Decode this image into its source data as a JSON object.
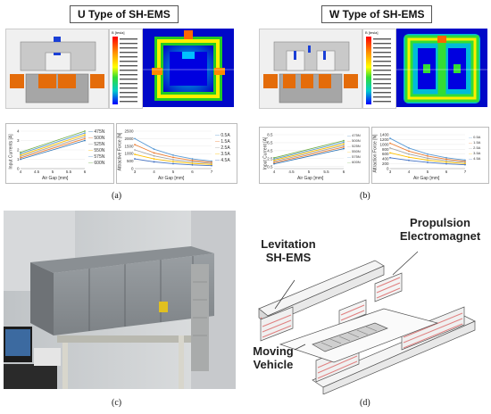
{
  "panel_a": {
    "title": "U Type of SH-EMS",
    "caption": "(a)",
    "colorbar_header": "B [tesla]",
    "left_chart": {
      "ylabel": "Input Currents [A]",
      "xlabel": "Air Gap [mm]",
      "legend": [
        "475N",
        "500N",
        "525N",
        "550N",
        "575N",
        "600N"
      ]
    },
    "right_chart": {
      "ylabel": "Attractive Force [N]",
      "xlabel": "Air Gap [mm]",
      "legend": [
        "0.5A",
        "1.5A",
        "2.5A",
        "3.5A",
        "4.5A"
      ]
    }
  },
  "panel_b": {
    "title": "W Type of SH-EMS",
    "caption": "(b)",
    "colorbar_header": "B [tesla]",
    "left_chart": {
      "ylabel": "Input Current [A]",
      "xlabel": "Air Gap [mm]",
      "legend": [
        "475N",
        "500N",
        "525N",
        "550N",
        "575N",
        "600N"
      ]
    },
    "right_chart": {
      "ylabel": "Attraction Force [N]",
      "xlabel": "Air Gap [mm]",
      "legend": [
        "0.5A",
        "1.5A",
        "2.5A",
        "3.5A",
        "4.5A"
      ]
    }
  },
  "panel_c": {
    "caption": "(c)"
  },
  "panel_d": {
    "caption": "(d)",
    "label_propulsion": "Propulsion Electromagnet",
    "label_levitation": "Levitation SH-EMS",
    "label_vehicle": "Moving Vehicle"
  },
  "chart_data": [
    {
      "type": "line",
      "xlabel": "Air Gap [mm]",
      "ylabel": "Input Currents [A]",
      "x": [
        4,
        6
      ],
      "xlim": [
        4,
        6
      ],
      "ylim": [
        0,
        4
      ],
      "xticks": [
        "4",
        "4.5",
        "5",
        "5.5",
        "6"
      ],
      "yticks": [
        "0",
        "1",
        "2",
        "3",
        "4"
      ],
      "series": [
        {
          "name": "475N",
          "color": "#2e75b6",
          "values": [
            1.0,
            3.0
          ]
        },
        {
          "name": "500N",
          "color": "#ed7d31",
          "values": [
            1.15,
            3.2
          ]
        },
        {
          "name": "525N",
          "color": "#a5a5a5",
          "values": [
            1.3,
            3.4
          ]
        },
        {
          "name": "550N",
          "color": "#ffc000",
          "values": [
            1.45,
            3.6
          ]
        },
        {
          "name": "575N",
          "color": "#5b9bd5",
          "values": [
            1.6,
            3.8
          ]
        },
        {
          "name": "600N",
          "color": "#70ad47",
          "values": [
            1.75,
            4.0
          ]
        }
      ]
    },
    {
      "type": "line",
      "xlabel": "Air Gap [mm]",
      "ylabel": "Attractive Force [N]",
      "x": [
        3,
        4,
        5,
        6,
        7
      ],
      "xlim": [
        3,
        7
      ],
      "ylim": [
        0,
        2500
      ],
      "xticks": [
        "3",
        "4",
        "5",
        "6",
        "7"
      ],
      "yticks": [
        "0",
        "500",
        "1000",
        "1500",
        "2000",
        "2500"
      ],
      "series": [
        {
          "name": "0.5A",
          "color": "#5b9bd5",
          "values": [
            2000,
            1300,
            900,
            650,
            500
          ]
        },
        {
          "name": "1.5A",
          "color": "#ed7d31",
          "values": [
            1600,
            1050,
            750,
            550,
            420
          ]
        },
        {
          "name": "2.5A",
          "color": "#a5a5a5",
          "values": [
            1250,
            850,
            600,
            450,
            350
          ]
        },
        {
          "name": "3.5A",
          "color": "#ffc000",
          "values": [
            950,
            650,
            470,
            350,
            280
          ]
        },
        {
          "name": "4.5A",
          "color": "#4472c4",
          "values": [
            650,
            450,
            330,
            250,
            200
          ]
        }
      ]
    },
    {
      "type": "line",
      "xlabel": "Air Gap [mm]",
      "ylabel": "Input Current [A]",
      "x": [
        4,
        6
      ],
      "xlim": [
        4,
        6
      ],
      "ylim": [
        0,
        8.5
      ],
      "xticks": [
        "4",
        "4.5",
        "5",
        "5.5",
        "6"
      ],
      "yticks": [
        "0.5",
        "2.5",
        "4.5",
        "6.5",
        "8.5"
      ],
      "series": [
        {
          "name": "475N",
          "color": "#2e75b6",
          "values": [
            1.2,
            5.0
          ]
        },
        {
          "name": "500N",
          "color": "#ed7d31",
          "values": [
            1.5,
            5.4
          ]
        },
        {
          "name": "525N",
          "color": "#a5a5a5",
          "values": [
            1.8,
            5.8
          ]
        },
        {
          "name": "550N",
          "color": "#ffc000",
          "values": [
            2.1,
            6.2
          ]
        },
        {
          "name": "575N",
          "color": "#5b9bd5",
          "values": [
            2.4,
            6.6
          ]
        },
        {
          "name": "600N",
          "color": "#70ad47",
          "values": [
            2.7,
            7.0
          ]
        }
      ]
    },
    {
      "type": "line",
      "xlabel": "Air Gap [mm]",
      "ylabel": "Attraction Force [N]",
      "x": [
        3,
        4,
        5,
        6,
        7
      ],
      "xlim": [
        3,
        7
      ],
      "ylim": [
        0,
        1400
      ],
      "xticks": [
        "3",
        "4",
        "5",
        "6",
        "7"
      ],
      "yticks": [
        "0",
        "200",
        "400",
        "600",
        "800",
        "1000",
        "1200",
        "1400"
      ],
      "series": [
        {
          "name": "0.5A",
          "color": "#5b9bd5",
          "values": [
            1250,
            850,
            600,
            450,
            350
          ]
        },
        {
          "name": "1.5A",
          "color": "#ed7d31",
          "values": [
            1050,
            720,
            520,
            390,
            300
          ]
        },
        {
          "name": "2.5A",
          "color": "#a5a5a5",
          "values": [
            850,
            600,
            430,
            330,
            260
          ]
        },
        {
          "name": "3.5A",
          "color": "#ffc000",
          "values": [
            650,
            470,
            350,
            270,
            210
          ]
        },
        {
          "name": "4.5A",
          "color": "#4472c4",
          "values": [
            450,
            340,
            260,
            200,
            160
          ]
        }
      ]
    }
  ]
}
